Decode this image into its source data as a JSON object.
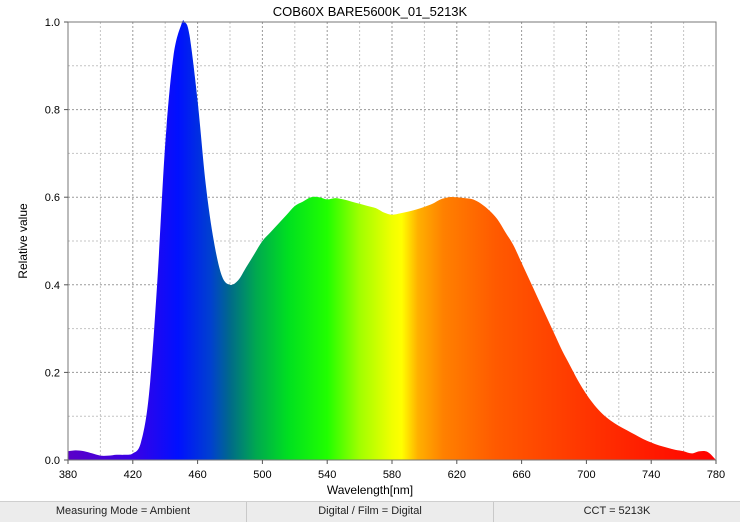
{
  "chart_data": {
    "type": "area",
    "title": "COB60X BARE5600K_01_5213K",
    "xlabel": "Wavelength[nm]",
    "ylabel": "Relative value",
    "xlim": [
      380,
      780
    ],
    "ylim": [
      0,
      1.0
    ],
    "x_ticks": [
      380,
      420,
      460,
      500,
      540,
      580,
      620,
      660,
      700,
      740,
      780
    ],
    "y_ticks": [
      0.0,
      0.2,
      0.4,
      0.6,
      0.8,
      1.0
    ],
    "x_tick_labels": [
      "380",
      "420",
      "460",
      "500",
      "540",
      "580",
      "620",
      "660",
      "700",
      "740",
      "780"
    ],
    "y_tick_labels": [
      "0.0",
      "0.2",
      "0.4",
      "0.6",
      "0.8",
      "1.0"
    ],
    "grid": true,
    "fill": "visible-spectrum-gradient",
    "x": [
      380,
      385,
      390,
      395,
      400,
      405,
      410,
      415,
      420,
      425,
      430,
      435,
      440,
      445,
      450,
      452,
      455,
      460,
      465,
      470,
      475,
      480,
      485,
      490,
      495,
      500,
      505,
      510,
      515,
      520,
      525,
      530,
      535,
      540,
      545,
      550,
      555,
      560,
      565,
      570,
      575,
      580,
      585,
      590,
      595,
      600,
      605,
      610,
      615,
      620,
      625,
      630,
      635,
      640,
      645,
      650,
      655,
      660,
      665,
      670,
      675,
      680,
      685,
      690,
      695,
      700,
      705,
      710,
      715,
      720,
      725,
      730,
      735,
      740,
      745,
      750,
      755,
      760,
      765,
      770,
      775,
      780
    ],
    "y": [
      0.02,
      0.022,
      0.02,
      0.015,
      0.01,
      0.01,
      0.012,
      0.012,
      0.015,
      0.04,
      0.15,
      0.4,
      0.72,
      0.92,
      0.995,
      1.0,
      0.97,
      0.82,
      0.63,
      0.5,
      0.42,
      0.4,
      0.41,
      0.44,
      0.47,
      0.5,
      0.52,
      0.54,
      0.56,
      0.58,
      0.59,
      0.6,
      0.6,
      0.595,
      0.598,
      0.595,
      0.59,
      0.585,
      0.58,
      0.575,
      0.565,
      0.56,
      0.563,
      0.567,
      0.572,
      0.578,
      0.585,
      0.595,
      0.6,
      0.6,
      0.598,
      0.595,
      0.585,
      0.57,
      0.55,
      0.52,
      0.49,
      0.45,
      0.41,
      0.37,
      0.33,
      0.29,
      0.25,
      0.215,
      0.18,
      0.15,
      0.125,
      0.105,
      0.09,
      0.078,
      0.068,
      0.058,
      0.048,
      0.04,
      0.033,
      0.028,
      0.023,
      0.02,
      0.015,
      0.02,
      0.018,
      0.0
    ]
  },
  "status": {
    "measuring_mode": "Measuring Mode = Ambient",
    "digital_film": "Digital / Film = Digital",
    "cct": "CCT = 5213K"
  }
}
